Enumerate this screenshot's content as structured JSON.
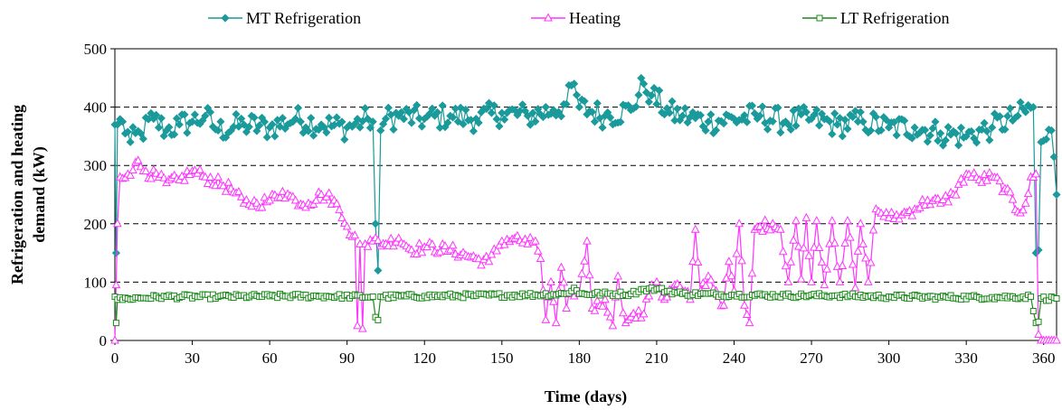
{
  "chart_data": {
    "type": "line",
    "xlabel": "Time (days)",
    "ylabel_lines": [
      "Refrigeration and heating",
      "demand (kW)"
    ],
    "xlim": [
      0,
      365
    ],
    "ylim": [
      0,
      500
    ],
    "x_ticks": [
      0,
      30,
      60,
      90,
      120,
      150,
      180,
      210,
      240,
      270,
      300,
      330,
      360
    ],
    "y_ticks": [
      0,
      100,
      200,
      300,
      400,
      500
    ],
    "grid": "horizontal-dashed",
    "legend_position": "top",
    "series": [
      {
        "name": "MT Refrigeration",
        "color": "#1a9a9a",
        "marker": "diamond",
        "keypoints": [
          [
            0,
            370
          ],
          [
            0.5,
            150
          ],
          [
            1,
            370
          ],
          [
            3,
            375
          ],
          [
            6,
            340
          ],
          [
            10,
            355
          ],
          [
            15,
            380
          ],
          [
            20,
            360
          ],
          [
            25,
            370
          ],
          [
            30,
            375
          ],
          [
            35,
            385
          ],
          [
            40,
            360
          ],
          [
            50,
            370
          ],
          [
            60,
            365
          ],
          [
            70,
            380
          ],
          [
            80,
            370
          ],
          [
            90,
            365
          ],
          [
            98,
            380
          ],
          [
            100,
            375
          ],
          [
            101,
            200
          ],
          [
            102,
            120
          ],
          [
            103,
            360
          ],
          [
            105,
            380
          ],
          [
            110,
            385
          ],
          [
            120,
            380
          ],
          [
            130,
            385
          ],
          [
            140,
            380
          ],
          [
            150,
            390
          ],
          [
            160,
            385
          ],
          [
            170,
            395
          ],
          [
            175,
            405
          ],
          [
            178,
            440
          ],
          [
            180,
            400
          ],
          [
            190,
            385
          ],
          [
            200,
            395
          ],
          [
            205,
            440
          ],
          [
            208,
            420
          ],
          [
            215,
            390
          ],
          [
            220,
            385
          ],
          [
            230,
            375
          ],
          [
            240,
            380
          ],
          [
            250,
            385
          ],
          [
            260,
            375
          ],
          [
            270,
            380
          ],
          [
            280,
            370
          ],
          [
            290,
            375
          ],
          [
            300,
            365
          ],
          [
            310,
            365
          ],
          [
            320,
            355
          ],
          [
            330,
            350
          ],
          [
            340,
            365
          ],
          [
            350,
            385
          ],
          [
            356,
            400
          ],
          [
            357,
            150
          ],
          [
            358,
            155
          ],
          [
            359,
            340
          ],
          [
            361,
            345
          ],
          [
            363,
            360
          ],
          [
            365,
            250
          ]
        ]
      },
      {
        "name": "Heating",
        "color": "#ff33ff",
        "marker": "triangle",
        "keypoints": [
          [
            0,
            0
          ],
          [
            0.5,
            95
          ],
          [
            1,
            200
          ],
          [
            2,
            280
          ],
          [
            5,
            285
          ],
          [
            8,
            305
          ],
          [
            12,
            290
          ],
          [
            20,
            270
          ],
          [
            25,
            275
          ],
          [
            30,
            290
          ],
          [
            35,
            280
          ],
          [
            45,
            260
          ],
          [
            50,
            235
          ],
          [
            55,
            235
          ],
          [
            60,
            240
          ],
          [
            65,
            255
          ],
          [
            70,
            240
          ],
          [
            75,
            235
          ],
          [
            80,
            250
          ],
          [
            85,
            240
          ],
          [
            88,
            210
          ],
          [
            90,
            195
          ],
          [
            93,
            180
          ],
          [
            94,
            25
          ],
          [
            95,
            165
          ],
          [
            96,
            20
          ],
          [
            97,
            165
          ],
          [
            100,
            170
          ],
          [
            105,
            165
          ],
          [
            110,
            175
          ],
          [
            115,
            155
          ],
          [
            120,
            160
          ],
          [
            130,
            155
          ],
          [
            140,
            140
          ],
          [
            145,
            135
          ],
          [
            150,
            170
          ],
          [
            155,
            175
          ],
          [
            160,
            165
          ],
          [
            163,
            170
          ],
          [
            165,
            140
          ],
          [
            167,
            35
          ],
          [
            169,
            100
          ],
          [
            171,
            30
          ],
          [
            173,
            125
          ],
          [
            175,
            55
          ],
          [
            177,
            85
          ],
          [
            180,
            80
          ],
          [
            183,
            170
          ],
          [
            185,
            55
          ],
          [
            190,
            70
          ],
          [
            193,
            25
          ],
          [
            195,
            110
          ],
          [
            198,
            30
          ],
          [
            200,
            40
          ],
          [
            205,
            45
          ],
          [
            208,
            95
          ],
          [
            210,
            100
          ],
          [
            213,
            70
          ],
          [
            217,
            95
          ],
          [
            220,
            85
          ],
          [
            223,
            70
          ],
          [
            225,
            190
          ],
          [
            227,
            85
          ],
          [
            230,
            110
          ],
          [
            233,
            85
          ],
          [
            236,
            60
          ],
          [
            238,
            135
          ],
          [
            240,
            85
          ],
          [
            242,
            200
          ],
          [
            244,
            60
          ],
          [
            246,
            30
          ],
          [
            248,
            190
          ],
          [
            250,
            195
          ],
          [
            255,
            200
          ],
          [
            258,
            190
          ],
          [
            261,
            100
          ],
          [
            264,
            205
          ],
          [
            266,
            105
          ],
          [
            268,
            210
          ],
          [
            270,
            100
          ],
          [
            272,
            205
          ],
          [
            275,
            95
          ],
          [
            278,
            205
          ],
          [
            281,
            100
          ],
          [
            284,
            205
          ],
          [
            287,
            90
          ],
          [
            289,
            200
          ],
          [
            292,
            100
          ],
          [
            295,
            225
          ],
          [
            300,
            210
          ],
          [
            305,
            215
          ],
          [
            310,
            225
          ],
          [
            315,
            240
          ],
          [
            320,
            235
          ],
          [
            325,
            250
          ],
          [
            330,
            285
          ],
          [
            335,
            275
          ],
          [
            340,
            280
          ],
          [
            345,
            260
          ],
          [
            350,
            220
          ],
          [
            353,
            235
          ],
          [
            355,
            280
          ],
          [
            357,
            285
          ],
          [
            358,
            10
          ],
          [
            359,
            0
          ],
          [
            362,
            0
          ],
          [
            365,
            0
          ]
        ]
      },
      {
        "name": "LT Refrigeration",
        "color": "#1a8a1a",
        "marker": "square",
        "keypoints": [
          [
            0,
            75
          ],
          [
            0.5,
            30
          ],
          [
            1,
            70
          ],
          [
            5,
            72
          ],
          [
            20,
            75
          ],
          [
            40,
            75
          ],
          [
            60,
            76
          ],
          [
            80,
            76
          ],
          [
            100,
            75
          ],
          [
            101,
            40
          ],
          [
            102,
            35
          ],
          [
            103,
            75
          ],
          [
            120,
            76
          ],
          [
            140,
            77
          ],
          [
            160,
            78
          ],
          [
            175,
            80
          ],
          [
            178,
            90
          ],
          [
            180,
            80
          ],
          [
            200,
            80
          ],
          [
            205,
            88
          ],
          [
            210,
            88
          ],
          [
            220,
            80
          ],
          [
            240,
            78
          ],
          [
            260,
            77
          ],
          [
            280,
            77
          ],
          [
            300,
            75
          ],
          [
            320,
            74
          ],
          [
            340,
            74
          ],
          [
            355,
            75
          ],
          [
            357,
            30
          ],
          [
            358,
            32
          ],
          [
            359,
            72
          ],
          [
            365,
            72
          ]
        ]
      }
    ]
  }
}
